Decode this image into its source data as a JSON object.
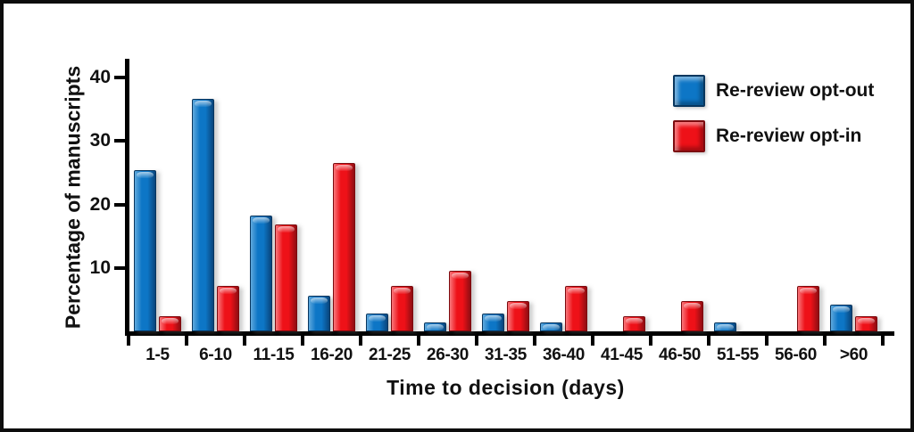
{
  "chart_data": {
    "type": "bar",
    "title": "",
    "xlabel": "Time to decision  (days)",
    "ylabel": "Percentage of manuscripts",
    "categories": [
      "1-5",
      "6-10",
      "11-15",
      "16-20",
      "21-25",
      "26-30",
      "31-35",
      "36-40",
      "41-45",
      "46-50",
      "51-55",
      "56-60",
      ">60"
    ],
    "series": [
      {
        "name": "Re-review opt-out",
        "color": "#0d76c6",
        "color_dark": "#09457c",
        "color_light": "#5fa9dd",
        "outline": "#08365e",
        "values": [
          25.4,
          36.6,
          18.3,
          5.6,
          2.8,
          1.4,
          2.8,
          1.4,
          0,
          0,
          1.4,
          0,
          4.2
        ]
      },
      {
        "name": "Re-review opt-in",
        "color": "#ee1118",
        "color_dark": "#8f0d12",
        "color_light": "#f9777b",
        "outline": "#7c0b0f",
        "values": [
          2.4,
          7.2,
          16.9,
          26.5,
          7.2,
          9.6,
          4.8,
          7.2,
          2.4,
          4.8,
          0,
          7.2,
          2.4
        ]
      }
    ],
    "y_ticks": [
      10,
      20,
      30,
      40
    ],
    "ylim": [
      0,
      43
    ],
    "grid": false,
    "legend_position": "top-right"
  },
  "colors": {
    "background": "#ffffff",
    "frame": "#0d0d0d",
    "axis": "#000000",
    "text": "#111111"
  }
}
